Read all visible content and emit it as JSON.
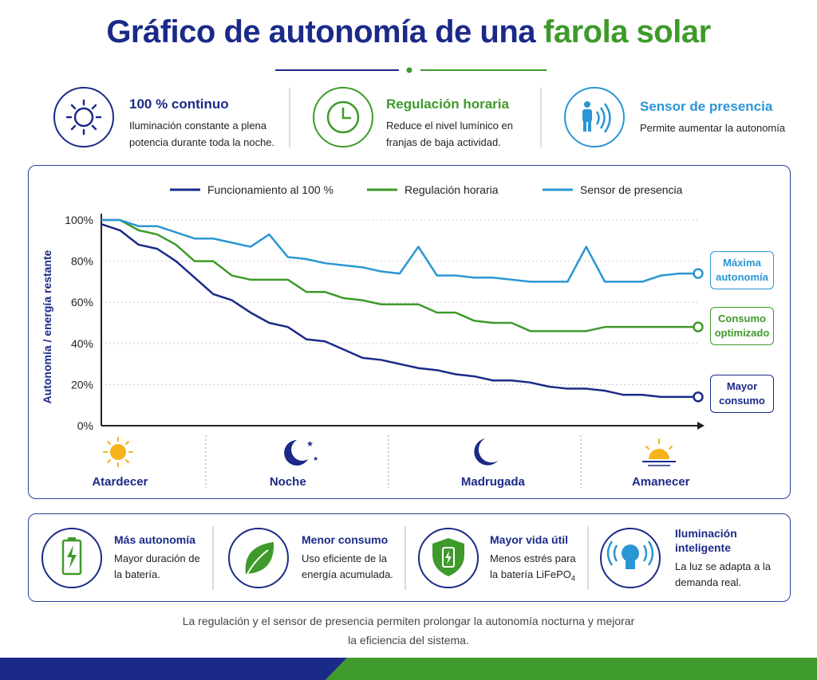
{
  "title": {
    "main": "Gráfico de autonomía de una",
    "highlight": "farola solar"
  },
  "features": [
    {
      "title": "100 % continuo",
      "text": "Iluminación constante a plena potencia durante toda la noche."
    },
    {
      "title": "Regulación horaria",
      "text": "Reduce el nivel lumínico en franjas de baja actividad."
    },
    {
      "title": "Sensor de presencia",
      "text": "Permite aumentar la autonomía"
    }
  ],
  "chart_data": {
    "type": "line",
    "ylabel": "Autonomía / energía restante",
    "categories": [
      null,
      "Atardecer",
      null,
      null,
      null,
      null,
      null,
      null,
      null,
      null,
      "Noche",
      null,
      null,
      null,
      null,
      null,
      null,
      null,
      null,
      null,
      null,
      "Madrugada",
      null,
      null,
      null,
      null,
      null,
      null,
      null,
      null,
      "Amanecer",
      null,
      null
    ],
    "series": [
      {
        "name": "Funcionamiento al 100 %",
        "color": "#1b2a88",
        "values": [
          98,
          95,
          88,
          86,
          80,
          72,
          64,
          61,
          55,
          50,
          48,
          42,
          41,
          37,
          33,
          32,
          30,
          28,
          27,
          25,
          24,
          22,
          22,
          21,
          19,
          18,
          18,
          17,
          15,
          15,
          14,
          14,
          14
        ]
      },
      {
        "name": "Regulación horaria",
        "color": "#3e9a2a",
        "values": [
          100,
          100,
          95,
          93,
          88,
          80,
          80,
          73,
          71,
          71,
          71,
          65,
          65,
          62,
          61,
          59,
          59,
          59,
          55,
          55,
          51,
          50,
          50,
          46,
          46,
          46,
          46,
          48,
          48,
          48,
          48,
          48,
          48
        ]
      },
      {
        "name": "Sensor de presencia",
        "color": "#2a96d4",
        "values": [
          100,
          100,
          97,
          97,
          94,
          91,
          91,
          89,
          87,
          93,
          82,
          81,
          79,
          78,
          77,
          75,
          74,
          87,
          73,
          73,
          72,
          72,
          71,
          70,
          70,
          70,
          87,
          70,
          70,
          70,
          73,
          74,
          74
        ]
      }
    ],
    "ylim": [
      0,
      100
    ],
    "yticks": [
      {
        "value": 0,
        "label": "0%"
      },
      {
        "value": 20,
        "label": "20%"
      },
      {
        "value": 40,
        "label": "40%"
      },
      {
        "value": 60,
        "label": "60%"
      },
      {
        "value": 80,
        "label": "80%"
      },
      {
        "value": 100,
        "label": "100%"
      }
    ],
    "grid": true,
    "annotations": [
      "Máxima autonomía",
      "Consumo optimizado",
      "Mayor consumo"
    ]
  },
  "benefits": [
    {
      "title": "Más autonomía",
      "text": "Mayor duración de la batería."
    },
    {
      "title": "Menor consumo",
      "text": "Uso eficiente de la energía acumulada."
    },
    {
      "title": "Mayor vida útil",
      "text": "Menos estrés para la batería LiFePO",
      "subscript": "4"
    },
    {
      "title": "Iluminación inteligente",
      "text": "La luz se adapta a la demanda real."
    }
  ],
  "footer": "La regulación y el sensor de presencia permiten prolongar la autonomía nocturna y mejorar la eficiencia del sistema."
}
